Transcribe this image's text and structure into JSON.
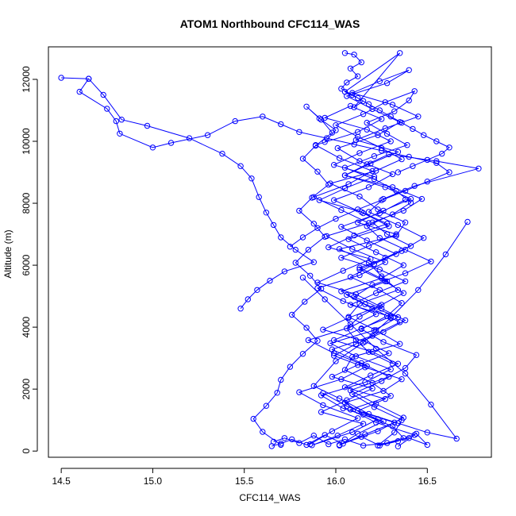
{
  "chart_data": {
    "type": "scatter",
    "title": "ATOM1 Northbound CFC114_WAS",
    "xlabel": "CFC114_WAS",
    "ylabel": "Altitude (m)",
    "xlim": [
      14.43,
      16.85
    ],
    "ylim": [
      -200,
      13050
    ],
    "xticks": [
      14.5,
      15.0,
      15.5,
      16.0,
      16.5
    ],
    "xtick_labels": [
      "14.5",
      "15.0",
      "15.5",
      "16.0",
      "16.5"
    ],
    "yticks": [
      0,
      2000,
      4000,
      6000,
      8000,
      10000,
      12000
    ],
    "ytick_labels": [
      "0",
      "2000",
      "4000",
      "6000",
      "8000",
      "10000",
      "12000"
    ],
    "grid": false,
    "legend": "none",
    "marker": "open-circle",
    "connected": true,
    "series_color": "#0000ff",
    "series": [
      {
        "x": [
          16.34,
          16.43,
          16.22,
          16.08,
          16.3,
          16.2,
          16.05,
          16.09,
          16.35,
          16.22,
          16.07,
          16.13,
          16.34,
          16.25,
          16.18,
          16.02,
          16.33,
          16.38,
          16.23,
          16.13,
          15.97,
          16.22,
          16.36,
          16.25,
          16.12,
          16.0,
          16.15,
          16.27,
          16.43,
          16.4,
          16.32,
          16.17,
          16.28,
          16.39,
          16.21,
          16.05,
          16.21,
          16.33,
          16.41,
          16.31,
          16.17,
          16.24,
          16.38,
          16.52,
          16.38,
          16.2,
          16.1,
          16.25,
          16.38,
          16.26,
          16.11,
          15.99,
          16.16,
          16.36,
          16.26,
          16.05,
          16.15,
          16.31,
          16.37,
          16.23,
          16.32,
          16.36,
          16.21,
          16.09,
          16.25,
          16.38,
          16.44,
          16.26,
          16.14,
          16.28,
          16.36,
          16.24,
          16.08,
          16.21,
          16.36,
          16.48,
          16.34,
          16.18,
          16.26,
          16.43,
          16.78,
          16.55,
          16.29,
          16.17,
          16.05,
          16.31,
          16.47,
          16.37,
          16.2,
          16.28,
          16.41,
          16.27,
          16.13,
          16.27,
          16.37,
          16.25,
          16.13,
          16.06,
          16.11,
          16.18,
          16.31
        ],
        "y": [
          150,
          520,
          920,
          1340,
          1780,
          2200,
          2620,
          3040,
          3460,
          3900,
          4330,
          4760,
          5200,
          5640,
          6080,
          6520,
          6950,
          7380,
          7800,
          8220,
          8640,
          9050,
          9420,
          9780,
          10150,
          10520,
          10880,
          11260,
          11620,
          11320,
          10970,
          10600,
          10240,
          9880,
          9520,
          9150,
          8780,
          8400,
          8020,
          7640,
          7260,
          6880,
          6500,
          6120,
          5740,
          5360,
          4980,
          4600,
          4220,
          3840,
          3460,
          3080,
          2700,
          2320,
          1940,
          1560,
          1180,
          800,
          420,
          180,
          600,
          1000,
          1420,
          1840,
          2260,
          2680,
          3100,
          3520,
          3940,
          4360,
          4780,
          5200,
          5620,
          6040,
          6460,
          6880,
          7300,
          7720,
          8140,
          8560,
          9120,
          9360,
          9580,
          9260,
          8900,
          8520,
          8140,
          7760,
          7380,
          7000,
          6620,
          6240,
          5860,
          5480,
          5100,
          4720,
          4340,
          3960,
          3580,
          3200,
          2820
        ]
      },
      {
        "x": [
          16.02,
          16.12,
          16.26,
          16.04,
          15.92,
          16.16,
          16.3,
          16.11,
          15.97,
          16.21,
          16.34,
          16.16,
          16.03,
          16.25,
          16.37,
          16.22,
          16.07,
          16.29,
          16.15,
          15.99,
          16.18,
          16.31,
          16.13,
          16.01,
          16.23,
          16.35,
          16.2,
          16.06,
          16.28,
          16.4,
          16.24,
          16.09,
          16.31,
          16.45,
          16.27,
          16.11,
          16.34,
          16.19,
          16.05,
          16.27,
          16.41,
          16.26,
          16.12,
          16.33,
          16.18,
          16.03,
          16.24,
          16.38,
          16.22,
          16.08,
          16.3,
          16.14,
          15.99,
          16.2,
          16.34,
          16.19,
          16.05,
          16.27,
          16.12,
          16.32,
          16.16,
          16.02,
          16.23,
          16.37,
          16.22,
          16.08,
          16.29,
          16.14,
          15.98,
          16.2,
          16.35,
          16.2,
          16.06,
          16.28,
          16.13,
          16.33,
          16.17,
          16.03,
          16.24,
          16.38
        ],
        "y": [
          180,
          560,
          960,
          1380,
          1800,
          2220,
          2640,
          3060,
          3480,
          3900,
          4320,
          4740,
          5160,
          5580,
          6000,
          6420,
          6840,
          7260,
          7680,
          8100,
          8520,
          8940,
          9360,
          9780,
          10200,
          10620,
          11040,
          11460,
          11880,
          12300,
          11940,
          11560,
          11180,
          10800,
          10420,
          10040,
          9660,
          9280,
          8900,
          8520,
          8140,
          7760,
          7380,
          7000,
          6620,
          6240,
          5860,
          5480,
          5100,
          4720,
          4340,
          3960,
          3580,
          3200,
          2820,
          2440,
          2060,
          1680,
          1300,
          920,
          540,
          200,
          640,
          1080,
          1520,
          1960,
          2400,
          2840,
          3280,
          3720,
          4160,
          4600,
          5040,
          5480,
          5920,
          6360,
          6800,
          7240,
          7680,
          8120
        ]
      },
      {
        "x": [
          15.86,
          15.98,
          16.12,
          15.93,
          15.8,
          16.03,
          16.17,
          15.99,
          15.85,
          16.08,
          16.22,
          16.04,
          15.9,
          16.13,
          16.27,
          16.09,
          15.95,
          16.18,
          16.03,
          15.88,
          16.07,
          16.2,
          16.02,
          15.89,
          16.12,
          16.25,
          16.08,
          15.94,
          16.17,
          16.3,
          16.13,
          15.99,
          16.21,
          16.05,
          15.91,
          16.14,
          16.28,
          16.1,
          15.96,
          16.19,
          16.04,
          15.9,
          16.11,
          16.24,
          16.07,
          15.93,
          16.16,
          16.29,
          16.12,
          15.98,
          16.2,
          16.06,
          15.92,
          16.15,
          16.01,
          15.87,
          16.09,
          16.23,
          16.06,
          15.93
        ],
        "y": [
          220,
          640,
          1060,
          1480,
          1900,
          2320,
          2740,
          3160,
          3580,
          4000,
          4420,
          4840,
          5260,
          5680,
          6100,
          6520,
          6940,
          7360,
          7780,
          8200,
          8620,
          9040,
          9460,
          9880,
          10300,
          10720,
          11140,
          10760,
          10380,
          10000,
          9620,
          9240,
          8860,
          8480,
          8100,
          7720,
          7340,
          6960,
          6580,
          6200,
          5820,
          5440,
          5060,
          4680,
          4300,
          3920,
          3540,
          3160,
          2780,
          2400,
          2020,
          1640,
          1260,
          880,
          500,
          190,
          610,
          1030,
          1450,
          1870
        ]
      },
      {
        "x": [
          15.7,
          15.6,
          15.55,
          15.62,
          15.68,
          15.7,
          15.75,
          15.82,
          15.9,
          15.84,
          15.76,
          15.83,
          15.92,
          15.86,
          15.78,
          15.85,
          15.94,
          15.88,
          15.8,
          15.87,
          15.96,
          15.9,
          15.82,
          15.89,
          15.98,
          15.92,
          15.84,
          15.91,
          16.0,
          15.94
        ],
        "y": [
          200,
          620,
          1040,
          1460,
          1880,
          2300,
          2720,
          3140,
          3560,
          3980,
          4400,
          4820,
          5240,
          5660,
          6080,
          6500,
          6920,
          7340,
          7760,
          8180,
          8600,
          9020,
          9440,
          9860,
          10280,
          10700,
          11120,
          10740,
          10360,
          9980
        ]
      },
      {
        "x": [
          14.5,
          14.65,
          14.73,
          14.83,
          14.97,
          15.2,
          15.38,
          15.48,
          15.54,
          15.58,
          15.62,
          15.66,
          15.7,
          15.78,
          15.88,
          15.72,
          15.64,
          15.57,
          15.52,
          15.48
        ],
        "y": [
          12050,
          12020,
          11500,
          10700,
          10500,
          10100,
          9600,
          9200,
          8800,
          8200,
          7700,
          7300,
          6900,
          6500,
          6100,
          5800,
          5500,
          5200,
          4900,
          4600
        ]
      },
      {
        "x": [
          14.65,
          14.6,
          14.75,
          14.8,
          14.82,
          15.0,
          15.1,
          15.3,
          15.45,
          15.6,
          15.7,
          15.8,
          15.95,
          16.1,
          16.25,
          16.4,
          16.55,
          16.62,
          16.5,
          16.38,
          16.25,
          16.12,
          16.0,
          15.9,
          15.82,
          15.75
        ],
        "y": [
          12020,
          11600,
          11050,
          10650,
          10250,
          9800,
          9950,
          10200,
          10650,
          10800,
          10550,
          10300,
          10100,
          9900,
          9700,
          9500,
          9300,
          9000,
          8700,
          8400,
          8100,
          7800,
          7500,
          7200,
          6900,
          6600
        ]
      },
      {
        "x": [
          16.05,
          16.1,
          16.14,
          16.08,
          16.12,
          16.06,
          16.03,
          16.09,
          16.15,
          16.1,
          16.35,
          16.05,
          16.12,
          16.18,
          16.24,
          16.3,
          16.36,
          16.42,
          16.48,
          16.55,
          16.62,
          16.58,
          16.5,
          16.42,
          16.34
        ],
        "y": [
          12850,
          12800,
          12550,
          12350,
          12100,
          11900,
          11700,
          11500,
          11300,
          11100,
          12850,
          11600,
          11400,
          11200,
          11000,
          10800,
          10600,
          10400,
          10200,
          10000,
          9800,
          9600,
          9400,
          9200,
          9000
        ]
      },
      {
        "x": [
          15.66,
          15.72,
          15.8,
          15.88,
          15.96,
          16.05,
          16.15,
          16.28,
          16.4,
          16.5,
          16.44,
          16.34,
          16.24,
          16.14,
          16.04,
          15.94,
          15.84,
          15.76,
          15.7,
          15.65
        ],
        "y": [
          300,
          420,
          260,
          500,
          220,
          380,
          180,
          260,
          420,
          200,
          560,
          320,
          180,
          460,
          240,
          520,
          200,
          380,
          240,
          160
        ]
      },
      {
        "x": [
          16.72,
          16.6,
          16.45,
          16.3,
          16.15,
          16.0,
          15.88,
          16.02,
          16.18,
          16.34,
          16.5,
          16.66,
          16.52,
          16.38,
          16.22,
          16.08,
          15.94,
          15.82
        ],
        "y": [
          7400,
          6350,
          5200,
          4300,
          3500,
          2900,
          2100,
          1700,
          1200,
          900,
          600,
          400,
          1500,
          2500,
          3300,
          4100,
          4900,
          5600
        ]
      }
    ]
  }
}
